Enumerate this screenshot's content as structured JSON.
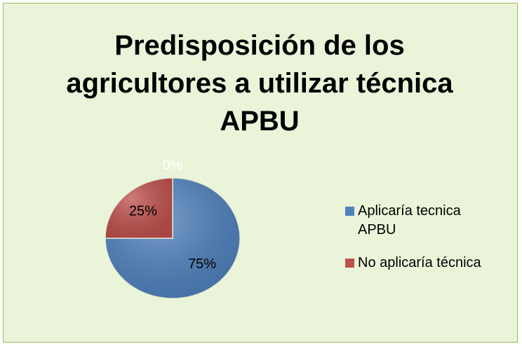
{
  "chart_data": {
    "type": "pie",
    "title": "Predisposición de los agricultores a utilizar técnica APBU",
    "categories": [
      "Aplicaría tecnica APBU",
      "No aplicaría técnica",
      null
    ],
    "values": [
      75,
      25,
      0
    ],
    "value_labels": [
      "75%",
      "25%",
      "0%"
    ],
    "colors": [
      "#4f81bd",
      "#c0504d",
      "#9bbb59"
    ]
  }
}
